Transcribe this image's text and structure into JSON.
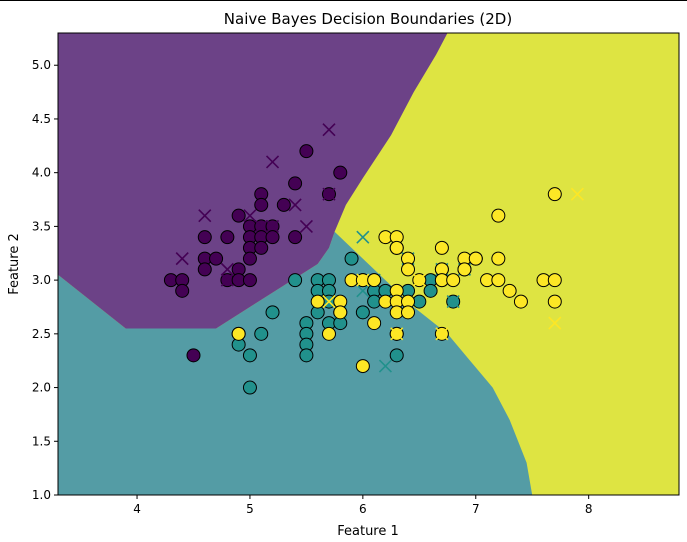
{
  "chart_data": {
    "type": "scatter",
    "title": "Naive Bayes Decision Boundaries (2D)",
    "xlabel": "Feature 1",
    "ylabel": "Feature 2",
    "xlim": [
      3.3,
      8.8
    ],
    "ylim": [
      1.0,
      5.3
    ],
    "xticks": [
      "4",
      "5",
      "6",
      "7",
      "8"
    ],
    "yticks": [
      "1.0",
      "1.5",
      "2.0",
      "2.5",
      "3.0",
      "3.5",
      "4.0",
      "4.5",
      "5.0"
    ],
    "grid": false,
    "legend": "none",
    "class_colors": [
      "#440154",
      "#21918c",
      "#fde725"
    ],
    "region_colors": [
      "#6c4287",
      "#549ca5",
      "#dee442"
    ],
    "boundary_class0_polyline": [
      [
        3.3,
        3.05
      ],
      [
        3.9,
        2.55
      ],
      [
        4.7,
        2.55
      ],
      [
        5.3,
        2.95
      ],
      [
        5.6,
        3.15
      ],
      [
        5.7,
        3.3
      ],
      [
        5.75,
        3.45
      ],
      [
        5.85,
        3.7
      ],
      [
        6.0,
        3.95
      ],
      [
        6.25,
        4.35
      ],
      [
        6.45,
        4.75
      ],
      [
        6.65,
        5.1
      ],
      [
        6.75,
        5.3
      ]
    ],
    "boundary_class1_class2_polyline": [
      [
        5.75,
        3.45
      ],
      [
        6.1,
        3.1
      ],
      [
        6.45,
        2.75
      ],
      [
        6.75,
        2.5
      ],
      [
        6.95,
        2.25
      ],
      [
        7.15,
        2.0
      ],
      [
        7.3,
        1.7
      ],
      [
        7.45,
        1.3
      ],
      [
        7.5,
        1.0
      ]
    ],
    "series": [
      {
        "class": 0,
        "marker": "circle",
        "points": [
          [
            4.3,
            3.0
          ],
          [
            4.4,
            3.0
          ],
          [
            4.4,
            2.9
          ],
          [
            4.5,
            2.3
          ],
          [
            4.6,
            3.4
          ],
          [
            4.6,
            3.2
          ],
          [
            4.6,
            3.1
          ],
          [
            4.7,
            3.2
          ],
          [
            4.8,
            3.4
          ],
          [
            4.8,
            3.0
          ],
          [
            4.9,
            3.6
          ],
          [
            4.9,
            3.1
          ],
          [
            4.9,
            3.0
          ],
          [
            5.0,
            3.5
          ],
          [
            5.0,
            3.4
          ],
          [
            5.0,
            3.3
          ],
          [
            5.0,
            3.2
          ],
          [
            5.0,
            3.0
          ],
          [
            5.1,
            3.8
          ],
          [
            5.1,
            3.7
          ],
          [
            5.1,
            3.5
          ],
          [
            5.1,
            3.4
          ],
          [
            5.1,
            3.3
          ],
          [
            5.2,
            3.5
          ],
          [
            5.2,
            3.4
          ],
          [
            5.3,
            3.7
          ],
          [
            5.4,
            3.9
          ],
          [
            5.4,
            3.4
          ],
          [
            5.5,
            4.2
          ],
          [
            5.7,
            3.8
          ],
          [
            5.8,
            4.0
          ]
        ]
      },
      {
        "class": 0,
        "marker": "x",
        "points": [
          [
            4.4,
            3.2
          ],
          [
            4.6,
            3.6
          ],
          [
            4.8,
            3.0
          ],
          [
            4.8,
            3.1
          ],
          [
            5.0,
            3.6
          ],
          [
            5.1,
            3.5
          ],
          [
            5.2,
            4.1
          ],
          [
            5.2,
            3.5
          ],
          [
            5.4,
            3.7
          ],
          [
            5.5,
            3.5
          ],
          [
            5.7,
            4.4
          ],
          [
            5.7,
            3.8
          ]
        ]
      },
      {
        "class": 1,
        "marker": "circle",
        "points": [
          [
            4.9,
            2.5
          ],
          [
            4.9,
            2.4
          ],
          [
            5.0,
            2.3
          ],
          [
            5.0,
            2.0
          ],
          [
            5.1,
            2.5
          ],
          [
            5.2,
            2.7
          ],
          [
            5.4,
            3.0
          ],
          [
            5.5,
            2.6
          ],
          [
            5.5,
            2.5
          ],
          [
            5.5,
            2.4
          ],
          [
            5.5,
            2.3
          ],
          [
            5.6,
            3.0
          ],
          [
            5.6,
            2.9
          ],
          [
            5.6,
            2.7
          ],
          [
            5.7,
            3.0
          ],
          [
            5.7,
            2.9
          ],
          [
            5.7,
            2.8
          ],
          [
            5.7,
            2.6
          ],
          [
            5.8,
            2.7
          ],
          [
            5.8,
            2.6
          ],
          [
            5.9,
            3.2
          ],
          [
            6.0,
            3.0
          ],
          [
            6.0,
            2.7
          ],
          [
            6.1,
            3.0
          ],
          [
            6.1,
            2.9
          ],
          [
            6.1,
            2.8
          ],
          [
            6.2,
            2.9
          ],
          [
            6.3,
            3.3
          ],
          [
            6.3,
            2.5
          ],
          [
            6.3,
            2.3
          ],
          [
            6.4,
            2.9
          ],
          [
            6.5,
            2.8
          ],
          [
            6.6,
            3.0
          ],
          [
            6.6,
            2.9
          ],
          [
            6.7,
            3.1
          ],
          [
            6.7,
            3.0
          ],
          [
            6.8,
            2.8
          ],
          [
            6.9,
            3.1
          ],
          [
            7.0,
            3.2
          ]
        ]
      },
      {
        "class": 1,
        "marker": "x",
        "points": [
          [
            5.6,
            2.8
          ],
          [
            5.8,
            2.7
          ],
          [
            6.0,
            3.4
          ],
          [
            6.0,
            2.9
          ],
          [
            6.1,
            3.0
          ],
          [
            6.2,
            2.2
          ],
          [
            6.3,
            2.5
          ],
          [
            6.4,
            3.2
          ],
          [
            6.7,
            3.1
          ],
          [
            6.8,
            2.8
          ],
          [
            6.9,
            3.1
          ]
        ]
      },
      {
        "class": 2,
        "marker": "circle",
        "points": [
          [
            4.9,
            2.5
          ],
          [
            5.6,
            2.8
          ],
          [
            5.7,
            2.5
          ],
          [
            5.8,
            2.8
          ],
          [
            5.8,
            2.7
          ],
          [
            5.9,
            3.0
          ],
          [
            6.0,
            3.0
          ],
          [
            6.0,
            2.2
          ],
          [
            6.1,
            3.0
          ],
          [
            6.1,
            2.6
          ],
          [
            6.2,
            3.4
          ],
          [
            6.2,
            2.8
          ],
          [
            6.3,
            3.4
          ],
          [
            6.3,
            3.3
          ],
          [
            6.3,
            2.9
          ],
          [
            6.3,
            2.8
          ],
          [
            6.3,
            2.7
          ],
          [
            6.3,
            2.5
          ],
          [
            6.4,
            3.2
          ],
          [
            6.4,
            3.1
          ],
          [
            6.4,
            2.8
          ],
          [
            6.4,
            2.7
          ],
          [
            6.5,
            3.0
          ],
          [
            6.7,
            3.3
          ],
          [
            6.7,
            3.1
          ],
          [
            6.7,
            3.0
          ],
          [
            6.7,
            2.5
          ],
          [
            6.8,
            3.0
          ],
          [
            6.9,
            3.2
          ],
          [
            6.9,
            3.1
          ],
          [
            7.0,
            3.2
          ],
          [
            7.1,
            3.0
          ],
          [
            7.2,
            3.6
          ],
          [
            7.2,
            3.2
          ],
          [
            7.2,
            3.0
          ],
          [
            7.3,
            2.9
          ],
          [
            7.4,
            2.8
          ],
          [
            7.6,
            3.0
          ],
          [
            7.7,
            3.8
          ],
          [
            7.7,
            3.0
          ],
          [
            7.7,
            2.8
          ]
        ]
      },
      {
        "class": 2,
        "marker": "x",
        "points": [
          [
            5.7,
            2.8
          ],
          [
            6.0,
            3.0
          ],
          [
            6.3,
            2.5
          ],
          [
            6.5,
            3.0
          ],
          [
            6.7,
            2.5
          ],
          [
            7.7,
            2.6
          ],
          [
            7.9,
            3.8
          ]
        ]
      }
    ]
  }
}
